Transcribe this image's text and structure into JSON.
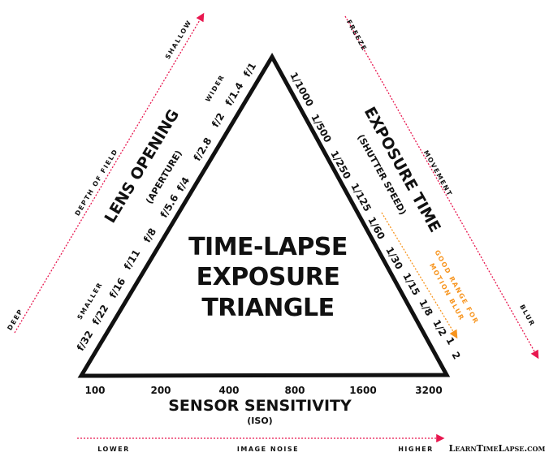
{
  "colors": {
    "arrow_red": "#e8174f",
    "accent_orange": "#f7941d",
    "line": "#111111"
  },
  "title": [
    "TIME-LAPSE",
    "EXPOSURE",
    "TRIANGLE"
  ],
  "aperture": {
    "label": "LENS OPENING",
    "sublabel": "(APERTURE)",
    "values": [
      "f/32",
      "f/22",
      "f/16",
      "f/11",
      "f/8",
      "f/5.6",
      "f/4",
      "f/2.8",
      "f/2",
      "f/1.4",
      "f/1"
    ],
    "low_label": "SMALLER",
    "high_label": "WIDER",
    "axis": {
      "label": "DEPTH OF FIELD",
      "start": "DEEP",
      "end": "SHALLOW"
    }
  },
  "shutter": {
    "label": "EXPOSURE TIME",
    "sublabel": "(SHUTTER SPEED)",
    "values": [
      "1/1000",
      "1/500",
      "1/250",
      "1/125",
      "1/60",
      "1/30",
      "1/15",
      "1/8",
      "1/2",
      "1",
      "2"
    ],
    "note": [
      "GOOD RANGE FOR",
      "MOTION BLUR"
    ],
    "axis": {
      "label": "MOVEMENT",
      "start": "FREEZE",
      "end": "BLUR"
    }
  },
  "iso": {
    "label": "SENSOR SENSITIVITY",
    "sublabel": "(ISO)",
    "values": [
      "100",
      "200",
      "400",
      "800",
      "1600",
      "3200"
    ],
    "axis": {
      "label": "IMAGE NOISE",
      "start": "LOWER",
      "end": "HIGHER"
    }
  },
  "brand": "LearnTimeLapse.com"
}
